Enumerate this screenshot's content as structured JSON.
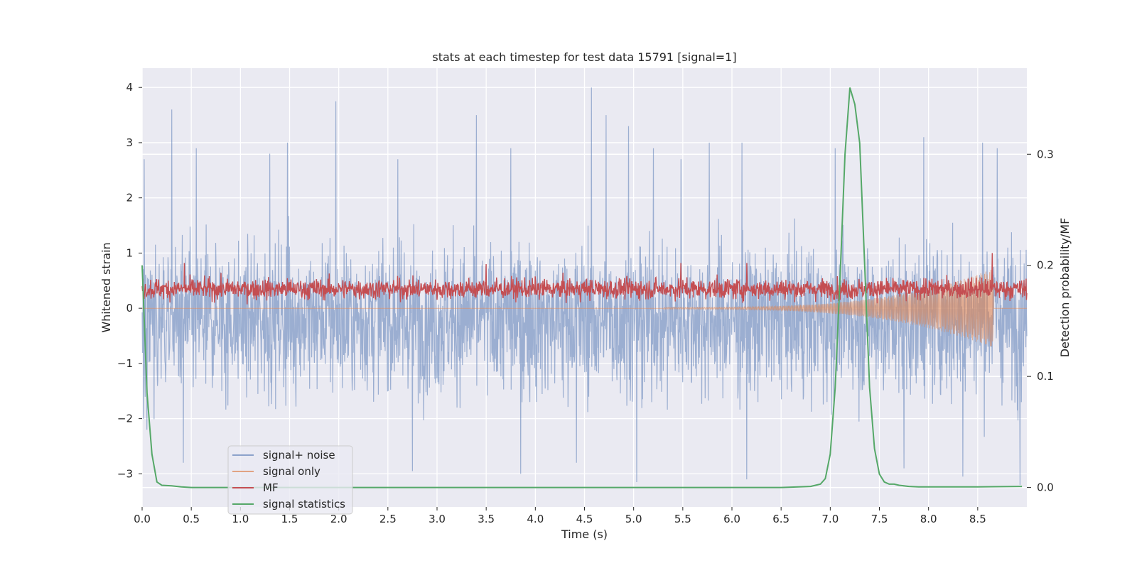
{
  "chart_data": {
    "type": "line",
    "title": "stats at each timestep for test data 15791 [signal=1]",
    "xlabel": "Time (s)",
    "ylabel": "Whitened strain",
    "y2label": "Detection probability/MF",
    "xlim": [
      0,
      9.0
    ],
    "ylim": [
      -3.6,
      4.35
    ],
    "y2lim": [
      -0.0175,
      0.3775
    ],
    "xticks": [
      0.0,
      0.5,
      1.0,
      1.5,
      2.0,
      2.5,
      3.0,
      3.5,
      4.0,
      4.5,
      5.0,
      5.5,
      6.0,
      6.5,
      7.0,
      7.5,
      8.0,
      8.5
    ],
    "xtick_labels": [
      "0.0",
      "0.5",
      "1.0",
      "1.5",
      "2.0",
      "2.5",
      "3.0",
      "3.5",
      "4.0",
      "4.5",
      "5.0",
      "5.5",
      "6.0",
      "6.5",
      "7.0",
      "7.5",
      "8.0",
      "8.5"
    ],
    "yticks": [
      -3,
      -2,
      -1,
      0,
      1,
      2,
      3,
      4
    ],
    "ytick_labels": [
      "−3",
      "−2",
      "−1",
      "0",
      "1",
      "2",
      "3",
      "4"
    ],
    "y2ticks": [
      0.0,
      0.1,
      0.2,
      0.3
    ],
    "y2tick_labels": [
      "0.0",
      "0.1",
      "0.2",
      "0.3"
    ],
    "grid": true,
    "legend_position": "lower-left",
    "series": [
      {
        "name": "signal+ noise",
        "axis": "left",
        "color": "#4c72b0",
        "style": "dense-noise",
        "description_range": [
          -3.3,
          4.0
        ],
        "peaks": [
          [
            0.02,
            2.7
          ],
          [
            0.3,
            3.6
          ],
          [
            0.55,
            2.9
          ],
          [
            1.3,
            2.8
          ],
          [
            1.48,
            3.0
          ],
          [
            1.97,
            3.75
          ],
          [
            2.6,
            2.7
          ],
          [
            3.4,
            3.5
          ],
          [
            3.75,
            2.9
          ],
          [
            4.57,
            4.0
          ],
          [
            4.72,
            3.5
          ],
          [
            4.95,
            3.3
          ],
          [
            5.2,
            2.9
          ],
          [
            5.48,
            2.7
          ],
          [
            5.77,
            3.0
          ],
          [
            6.1,
            3.0
          ],
          [
            7.05,
            2.9
          ],
          [
            7.95,
            3.1
          ],
          [
            8.55,
            3.0
          ],
          [
            8.7,
            2.9
          ]
        ],
        "troughs": [
          [
            0.05,
            -2.2
          ],
          [
            0.42,
            -2.8
          ],
          [
            0.55,
            -2.6
          ],
          [
            2.75,
            -2.95
          ],
          [
            3.85,
            -3.0
          ],
          [
            4.42,
            -2.8
          ],
          [
            5.03,
            -3.15
          ],
          [
            5.77,
            -3.3
          ],
          [
            6.15,
            -3.1
          ],
          [
            7.75,
            -2.9
          ],
          [
            8.35,
            -3.05
          ],
          [
            8.93,
            -3.2
          ]
        ]
      },
      {
        "name": "signal only",
        "axis": "left",
        "color": "#dd8452",
        "style": "chirp",
        "chirp_start": 5.3,
        "chirp_end": 8.66,
        "chirp_max_amplitude": 0.7
      },
      {
        "name": "MF",
        "axis": "left",
        "color": "#c44e52",
        "style": "noise-band",
        "band": [
          0.05,
          0.65
        ],
        "spikes": [
          [
            0.43,
            0.82
          ],
          [
            3.5,
            0.8
          ],
          [
            5.48,
            0.82
          ],
          [
            6.15,
            0.82
          ],
          [
            8.65,
            1.0
          ]
        ]
      },
      {
        "name": "signal statistics",
        "axis": "right",
        "color": "#55a868",
        "x": [
          0.0,
          0.05,
          0.1,
          0.15,
          0.2,
          0.3,
          0.4,
          0.5,
          1.0,
          2.0,
          3.0,
          4.0,
          5.0,
          6.0,
          6.5,
          6.8,
          6.9,
          6.95,
          7.0,
          7.05,
          7.1,
          7.15,
          7.2,
          7.25,
          7.3,
          7.35,
          7.4,
          7.45,
          7.5,
          7.55,
          7.6,
          7.65,
          7.7,
          7.8,
          7.9,
          8.0,
          8.1,
          8.5,
          8.95
        ],
        "values": [
          0.2,
          0.085,
          0.03,
          0.005,
          0.002,
          0.0015,
          0.0005,
          0.0,
          0.0,
          0.0,
          0.0,
          0.0,
          0.0,
          0.0,
          0.0,
          0.001,
          0.003,
          0.008,
          0.03,
          0.09,
          0.19,
          0.3,
          0.36,
          0.345,
          0.31,
          0.2,
          0.09,
          0.035,
          0.012,
          0.005,
          0.003,
          0.003,
          0.002,
          0.001,
          0.0005,
          0.0005,
          0.0005,
          0.0005,
          0.001
        ]
      }
    ]
  }
}
